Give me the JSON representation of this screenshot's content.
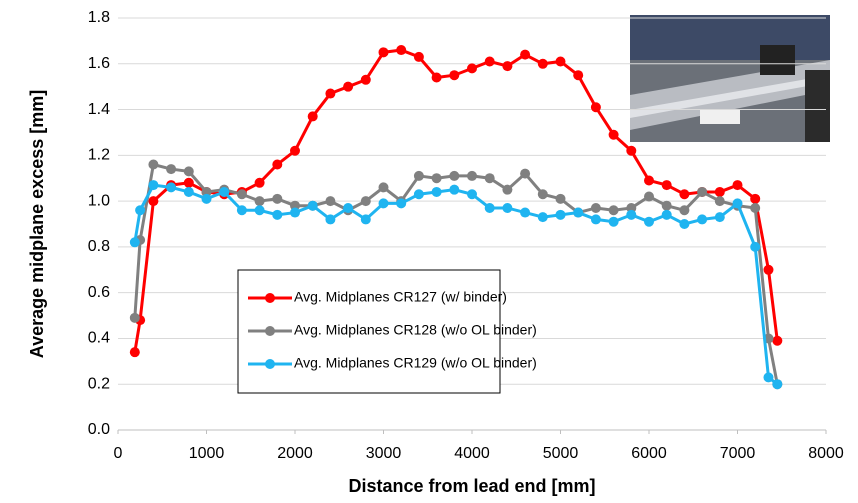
{
  "chart_data": {
    "type": "line",
    "xlabel": "Distance from lead end [mm]",
    "ylabel": "Average midplane excess [mm]",
    "x": [
      190,
      250,
      400,
      600,
      800,
      1000,
      1200,
      1400,
      1600,
      1800,
      2000,
      2200,
      2400,
      2600,
      2800,
      3000,
      3200,
      3400,
      3600,
      3800,
      4000,
      4200,
      4400,
      4600,
      4800,
      5000,
      5200,
      5400,
      5600,
      5800,
      6000,
      6200,
      6400,
      6600,
      6800,
      7000,
      7200,
      7350,
      7450
    ],
    "series": [
      {
        "name": "Avg. Midplanes CR127 (w/ binder)",
        "color": "#ff0000",
        "values": [
          0.34,
          0.48,
          1.0,
          1.07,
          1.08,
          1.04,
          1.03,
          1.04,
          1.08,
          1.16,
          1.22,
          1.37,
          1.47,
          1.5,
          1.53,
          1.65,
          1.66,
          1.63,
          1.54,
          1.55,
          1.58,
          1.61,
          1.59,
          1.64,
          1.6,
          1.61,
          1.55,
          1.41,
          1.29,
          1.22,
          1.09,
          1.07,
          1.03,
          1.04,
          1.04,
          1.07,
          1.01,
          0.7,
          0.39
        ]
      },
      {
        "name": "Avg. Midplanes CR128 (w/o OL binder)",
        "color": "#808080",
        "values": [
          0.49,
          0.83,
          1.16,
          1.14,
          1.13,
          1.04,
          1.05,
          1.03,
          1.0,
          1.01,
          0.98,
          0.98,
          1.0,
          0.96,
          1.0,
          1.06,
          1.0,
          1.11,
          1.1,
          1.11,
          1.11,
          1.1,
          1.05,
          1.12,
          1.03,
          1.01,
          0.95,
          0.97,
          0.96,
          0.97,
          1.02,
          0.98,
          0.96,
          1.04,
          1.0,
          0.98,
          0.97,
          0.4,
          0.2
        ]
      },
      {
        "name": "Avg. Midplanes CR129 (w/o OL binder)",
        "color": "#1fb4f0",
        "values": [
          0.82,
          0.96,
          1.07,
          1.06,
          1.04,
          1.01,
          1.04,
          0.96,
          0.96,
          0.94,
          0.95,
          0.98,
          0.92,
          0.97,
          0.92,
          0.99,
          0.99,
          1.03,
          1.04,
          1.05,
          1.03,
          0.97,
          0.97,
          0.95,
          0.93,
          0.94,
          0.95,
          0.92,
          0.91,
          0.94,
          0.91,
          0.94,
          0.9,
          0.92,
          0.93,
          0.99,
          0.8,
          0.23,
          0.2
        ]
      }
    ],
    "xlim": [
      0,
      8000
    ],
    "xticks": [
      0,
      1000,
      2000,
      3000,
      4000,
      5000,
      6000,
      7000,
      8000
    ],
    "ylim": [
      0,
      1.8
    ],
    "yticks": [
      {
        "value": 0,
        "label": "0.0"
      },
      0.2,
      0.4,
      0.6,
      0.8,
      {
        "value": 1,
        "label": "1.0"
      },
      1.2,
      1.4,
      1.6,
      1.8
    ],
    "grid": true
  }
}
